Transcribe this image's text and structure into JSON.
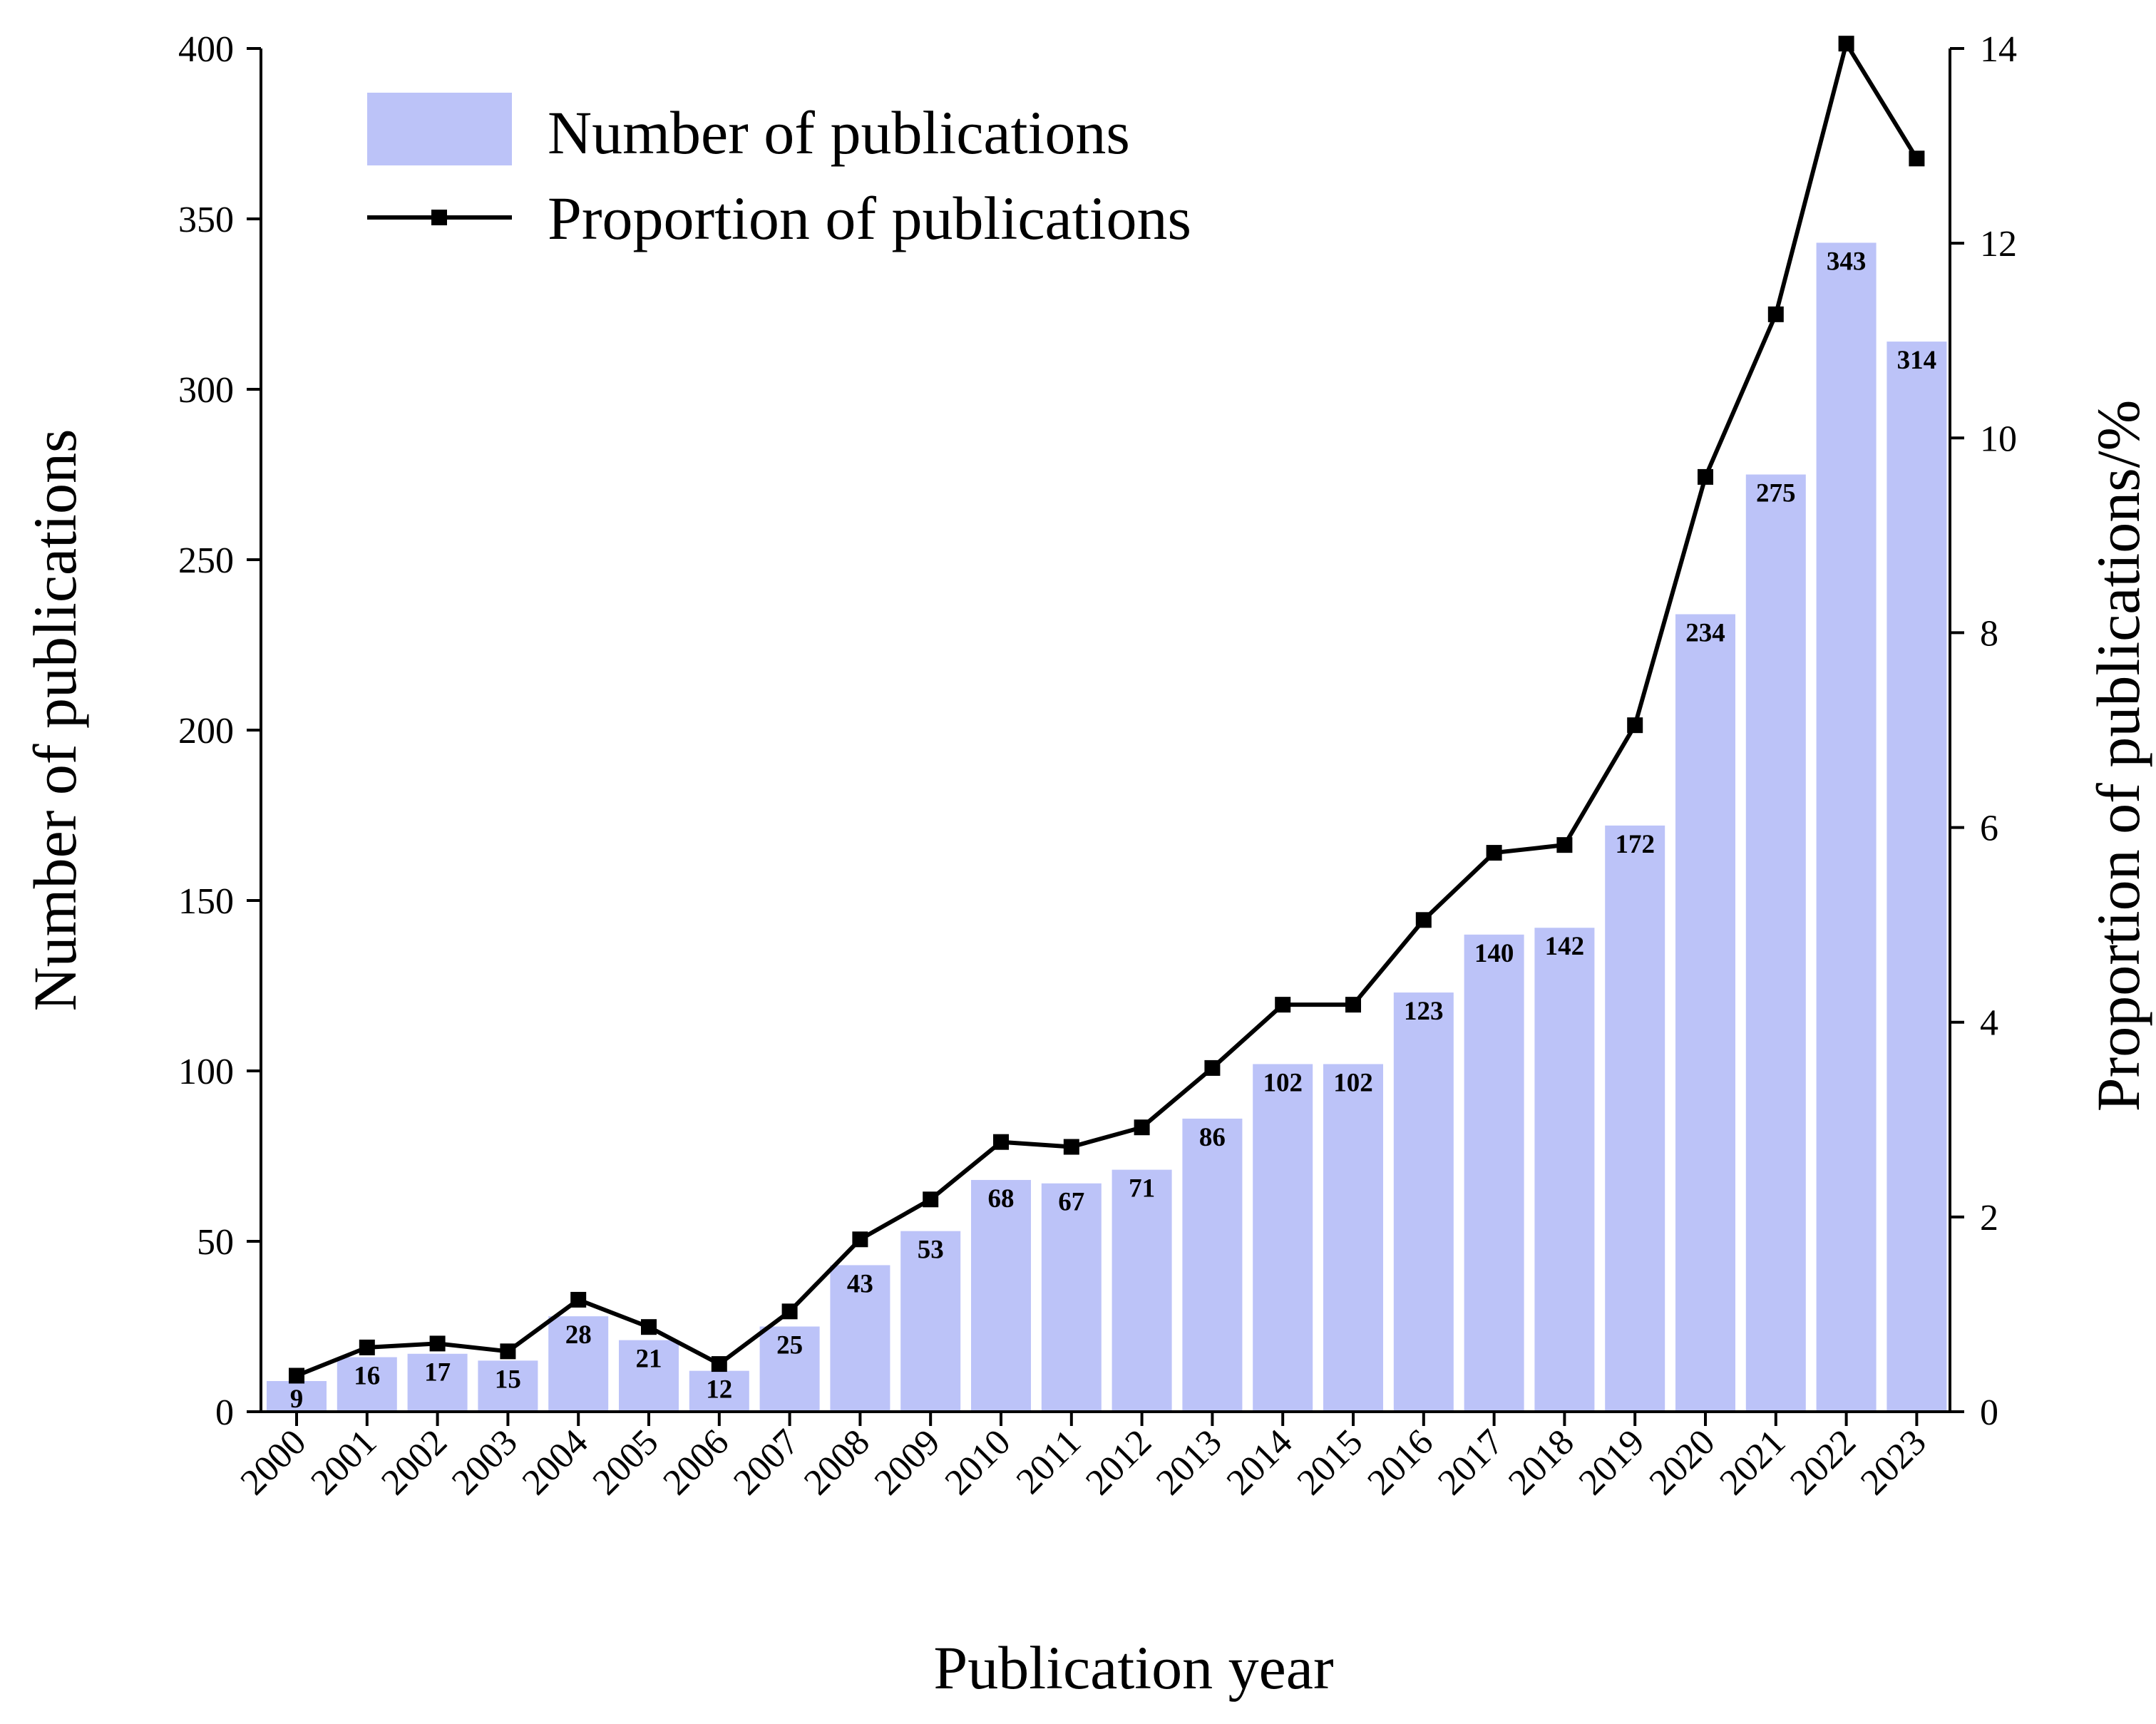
{
  "chart_data": {
    "type": "bar",
    "title": "",
    "xlabel": "Publication year",
    "ylabel": "Number of publications",
    "y2label": "Proportion of publications/%",
    "categories": [
      "2000",
      "2001",
      "2002",
      "2003",
      "2004",
      "2005",
      "2006",
      "2007",
      "2008",
      "2009",
      "2010",
      "2011",
      "2012",
      "2013",
      "2014",
      "2015",
      "2016",
      "2017",
      "2018",
      "2019",
      "2020",
      "2021",
      "2022",
      "2023"
    ],
    "ylim": [
      0,
      400
    ],
    "yticks": [
      0,
      50,
      100,
      150,
      200,
      250,
      300,
      350,
      400
    ],
    "y2lim": [
      0,
      14
    ],
    "y2ticks": [
      0,
      2,
      4,
      6,
      8,
      10,
      12,
      14
    ],
    "legend_position": "top-left",
    "grid": false,
    "series": [
      {
        "name": "Number of publications",
        "type": "bar",
        "axis": "left",
        "color": "#bcc3f8",
        "values": [
          9,
          16,
          17,
          15,
          28,
          21,
          12,
          25,
          43,
          53,
          68,
          67,
          71,
          86,
          102,
          102,
          123,
          140,
          142,
          172,
          234,
          275,
          343,
          314
        ]
      },
      {
        "name": "Proportion of publications",
        "type": "line",
        "axis": "right",
        "color": "#000000",
        "marker": "square",
        "values": [
          0.37,
          0.66,
          0.7,
          0.62,
          1.15,
          0.87,
          0.49,
          1.03,
          1.77,
          2.18,
          2.77,
          2.72,
          2.92,
          3.53,
          4.18,
          4.18,
          5.05,
          5.74,
          5.82,
          7.05,
          9.6,
          11.27,
          14.05,
          12.87
        ]
      }
    ]
  }
}
